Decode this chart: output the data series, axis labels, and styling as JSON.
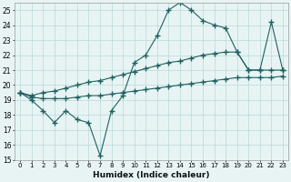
{
  "xlabel": "Humidex (Indice chaleur)",
  "bg_color": "#e8f4f4",
  "grid_color": "#b8d8d8",
  "line_color": "#206060",
  "x": [
    0,
    1,
    2,
    3,
    4,
    5,
    6,
    7,
    8,
    9,
    10,
    11,
    12,
    13,
    14,
    15,
    16,
    17,
    18,
    19,
    20,
    21,
    22,
    23
  ],
  "line_jagged": [
    19.5,
    19.0,
    18.3,
    17.5,
    18.3,
    17.7,
    17.5,
    15.3,
    18.3,
    19.3,
    21.5,
    22.0,
    23.3,
    25.0,
    25.5,
    25.0,
    24.3,
    24.0,
    23.8,
    22.2,
    21.0,
    21.0,
    24.2,
    21.0
  ],
  "line_mid": [
    19.5,
    19.3,
    19.5,
    19.6,
    19.8,
    20.0,
    20.2,
    20.3,
    20.5,
    20.7,
    20.9,
    21.1,
    21.3,
    21.5,
    21.6,
    21.8,
    22.0,
    22.1,
    22.2,
    22.2,
    21.0,
    21.0,
    21.0,
    21.0
  ],
  "line_bot": [
    19.5,
    19.2,
    19.1,
    19.1,
    19.1,
    19.2,
    19.3,
    19.3,
    19.4,
    19.5,
    19.6,
    19.7,
    19.8,
    19.9,
    20.0,
    20.1,
    20.2,
    20.3,
    20.4,
    20.5,
    20.5,
    20.5,
    20.5,
    20.6
  ],
  "ylim": [
    15,
    25.5
  ],
  "yticks": [
    15,
    16,
    17,
    18,
    19,
    20,
    21,
    22,
    23,
    24,
    25
  ]
}
